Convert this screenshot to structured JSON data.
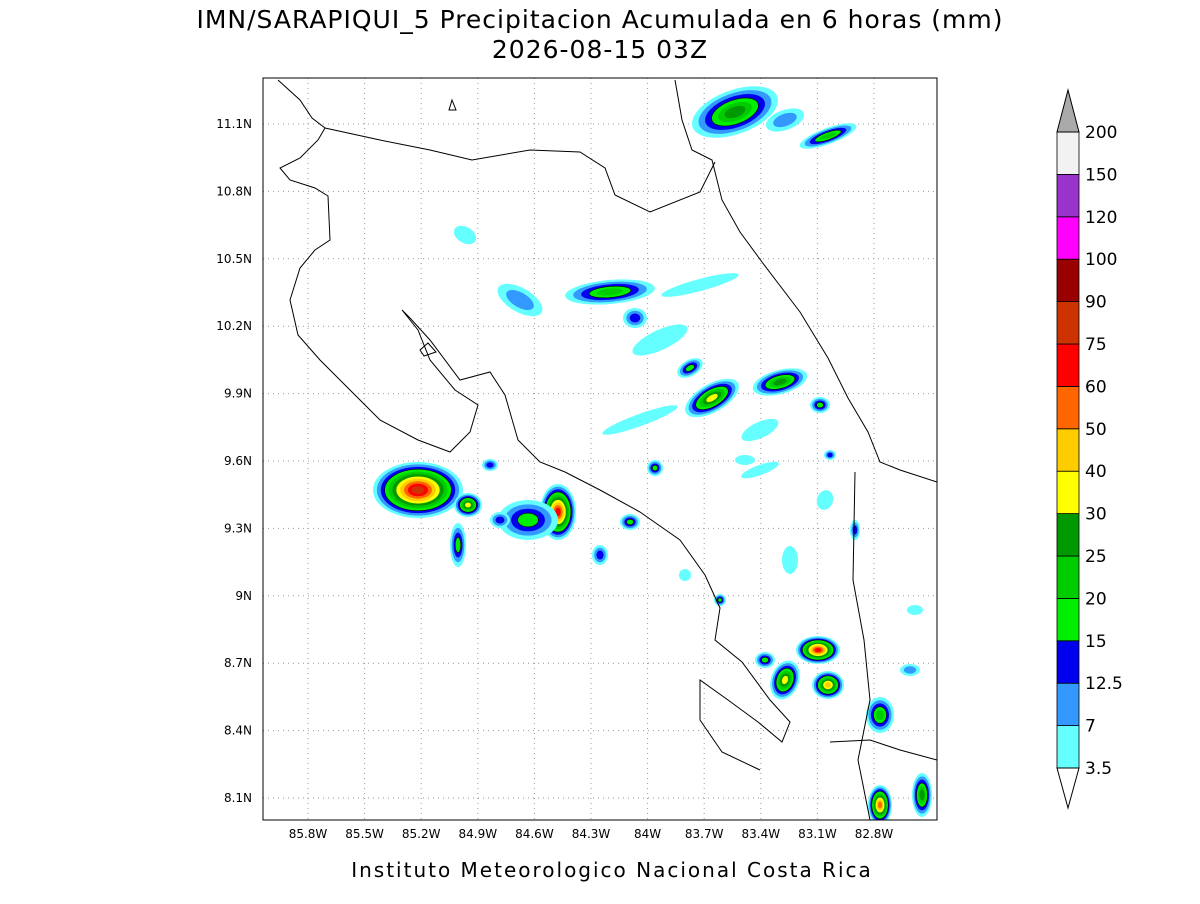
{
  "header": {
    "title": "IMN/SARAPIQUI_5 Precipitacion Acumulada en 6 horas (mm)",
    "subtitle": "2026-08-15 03Z"
  },
  "map": {
    "lon_labels": [
      "85.8W",
      "85.5W",
      "85.2W",
      "84.9W",
      "84.6W",
      "84.3W",
      "84W",
      "83.7W",
      "83.4W",
      "83.1W",
      "82.8W"
    ],
    "lat_labels": [
      "11.1N",
      "10.8N",
      "10.5N",
      "10.2N",
      "9.9N",
      "9.6N",
      "9.3N",
      "9N",
      "8.7N",
      "8.4N",
      "8.1N"
    ]
  },
  "colorbar": {
    "levels": [
      "3.5",
      "7",
      "12.5",
      "15",
      "20",
      "25",
      "30",
      "40",
      "50",
      "60",
      "75",
      "90",
      "100",
      "120",
      "150",
      "200"
    ],
    "colors": [
      "#66ffff",
      "#3399ff",
      "#0000ee",
      "#00ee00",
      "#00cc00",
      "#009900",
      "#ffff00",
      "#ffcc00",
      "#ff6600",
      "#ff0000",
      "#cc3300",
      "#990000",
      "#ff00ff",
      "#9933cc",
      "#f2f2f2"
    ],
    "under_color": "#ffffff",
    "over_color": "#aaaaaa"
  },
  "footer": "Instituto Meteorologico Nacional Costa Rica"
}
